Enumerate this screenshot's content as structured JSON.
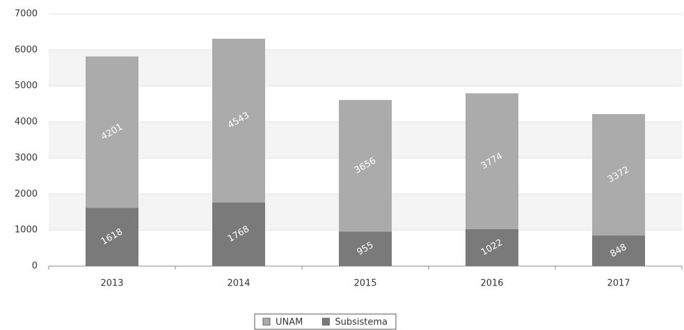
{
  "chart_data": {
    "type": "stacked_bar",
    "categories": [
      "2013",
      "2014",
      "2015",
      "2016",
      "2017"
    ],
    "series": [
      {
        "name": "Subsistema",
        "color": "#7a7a7a",
        "values": [
          1618,
          1768,
          955,
          1022,
          848
        ]
      },
      {
        "name": "UNAM",
        "color": "#ababab",
        "values": [
          4201,
          4543,
          3656,
          3774,
          3372
        ]
      }
    ],
    "ylim": [
      0,
      7000
    ],
    "yticks": [
      0,
      1000,
      2000,
      3000,
      4000,
      5000,
      6000,
      7000
    ],
    "grid": true,
    "legend": "bottom"
  }
}
